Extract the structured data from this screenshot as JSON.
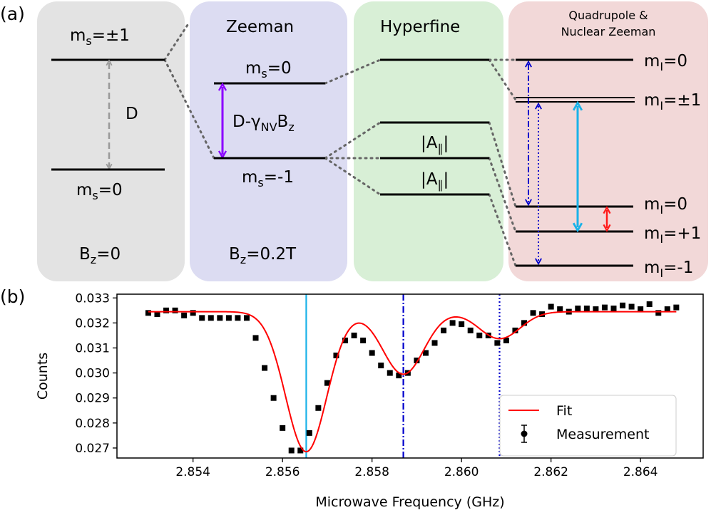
{
  "panel_a": {
    "label": "(a)",
    "columns": [
      {
        "id": "zero-field",
        "title_main": "m",
        "title_sub": "s",
        "title_tail": "=±1",
        "levels": [
          {
            "main": "m",
            "sub": "s",
            "tail": "=±1"
          },
          {
            "main": "m",
            "sub": "s",
            "tail": "=0"
          }
        ],
        "splitting": "D",
        "field_main": "B",
        "field_sub": "z",
        "field_tail": "=0",
        "color": "#e3e3e3"
      },
      {
        "id": "zeeman",
        "title": "Zeeman",
        "levels": [
          {
            "main": "m",
            "sub": "s",
            "tail": "=0"
          },
          {
            "main": "m",
            "sub": "s",
            "tail": "=-1"
          }
        ],
        "splitting_main": "D-γ",
        "splitting_sub": "NV",
        "splitting_tail": "B",
        "splitting_sub2": "z",
        "field_main": "B",
        "field_sub": "z",
        "field_tail": "=0.2T",
        "color": "#dcdcf2"
      },
      {
        "id": "hyperfine",
        "title": "Hyperfine",
        "coupling_label": "|A",
        "coupling_sub": "∥",
        "coupling_tail": "|",
        "color": "#d8efd6"
      },
      {
        "id": "quadrupole",
        "title_line1": "Quadrupole &",
        "title_line2": "Nuclear Zeeman",
        "levels": [
          {
            "main": "m",
            "sub": "I",
            "tail": "=0"
          },
          {
            "main": "m",
            "sub": "I",
            "tail": "=±1"
          },
          {
            "main": "m",
            "sub": "I",
            "tail": "=0"
          },
          {
            "main": "m",
            "sub": "I",
            "tail": "=+1"
          },
          {
            "main": "m",
            "sub": "I",
            "tail": "=-1"
          }
        ],
        "color": "#f2d8d8"
      }
    ],
    "colors": {
      "purple": "#8b00ff",
      "cyan": "#1ab2e8",
      "red": "#ff1a1a",
      "blue": "#0000cc",
      "gray": "#9a9a9a"
    }
  },
  "panel_b": {
    "label": "(b)",
    "chart_data": {
      "type": "scatter",
      "xlabel": "Microwave Frequency (GHz)",
      "ylabel": "Counts",
      "xlim": [
        2.8523,
        2.8654
      ],
      "ylim": [
        0.0266,
        0.03315
      ],
      "xticks": [
        2.854,
        2.856,
        2.858,
        2.86,
        2.862,
        2.864
      ],
      "xtick_labels": [
        "2.854",
        "2.856",
        "2.858",
        "2.860",
        "2.862",
        "2.864"
      ],
      "yticks": [
        0.027,
        0.028,
        0.029,
        0.03,
        0.031,
        0.032,
        0.033
      ],
      "ytick_labels": [
        "0.027",
        "0.028",
        "0.029",
        "0.030",
        "0.031",
        "0.032",
        "0.033"
      ],
      "vlines": [
        {
          "x": 2.85653,
          "style": "solid",
          "color": "#1ab2e8"
        },
        {
          "x": 2.8587,
          "style": "dashdot",
          "color": "#0000cc"
        },
        {
          "x": 2.86085,
          "style": "dotted",
          "color": "#0000cc"
        }
      ],
      "fit": {
        "name": "Fit",
        "color": "#ff0000",
        "baseline": 0.03245,
        "peaks": [
          {
            "center": 2.85653,
            "amplitude": 0.0056,
            "sigma": 0.00046
          },
          {
            "center": 2.8587,
            "amplitude": 0.0025,
            "sigma": 0.00046
          },
          {
            "center": 2.86085,
            "amplitude": 0.00108,
            "sigma": 0.00046
          }
        ]
      },
      "measurement": {
        "name": "Measurement",
        "color": "#000000",
        "x": [
          2.853,
          2.8532,
          2.8534,
          2.8536,
          2.8538,
          2.854,
          2.8542,
          2.8544,
          2.8546,
          2.8548,
          2.855,
          2.8552,
          2.8554,
          2.8556,
          2.8558,
          2.856,
          2.8562,
          2.8564,
          2.8566,
          2.8568,
          2.857,
          2.8572,
          2.8574,
          2.8576,
          2.8578,
          2.858,
          2.8582,
          2.8584,
          2.8586,
          2.8588,
          2.859,
          2.8592,
          2.8594,
          2.8596,
          2.8598,
          2.86,
          2.8602,
          2.8604,
          2.8606,
          2.8608,
          2.861,
          2.8612,
          2.8614,
          2.8616,
          2.8618,
          2.862,
          2.8622,
          2.8624,
          2.8626,
          2.8628,
          2.863,
          2.8632,
          2.8634,
          2.8636,
          2.8638,
          2.864,
          2.8642,
          2.8644,
          2.8646,
          2.8648
        ],
        "y": [
          0.0324,
          0.03235,
          0.0325,
          0.0325,
          0.0323,
          0.0324,
          0.0322,
          0.0322,
          0.0322,
          0.0322,
          0.0322,
          0.0322,
          0.0314,
          0.0302,
          0.029,
          0.0278,
          0.0269,
          0.0269,
          0.0276,
          0.0286,
          0.0296,
          0.0307,
          0.0313,
          0.0315,
          0.0313,
          0.0308,
          0.0303,
          0.03,
          0.0299,
          0.03,
          0.0305,
          0.0308,
          0.0312,
          0.0317,
          0.032,
          0.03195,
          0.0317,
          0.0315,
          0.0315,
          0.0312,
          0.0313,
          0.0317,
          0.032,
          0.0324,
          0.03235,
          0.03265,
          0.03255,
          0.03245,
          0.03258,
          0.03258,
          0.03255,
          0.03262,
          0.03258,
          0.0327,
          0.03265,
          0.03255,
          0.03275,
          0.0324,
          0.03255,
          0.03262
        ]
      },
      "legend": {
        "placement": "bottom-right",
        "entries": [
          "Fit",
          "Measurement"
        ]
      }
    }
  }
}
